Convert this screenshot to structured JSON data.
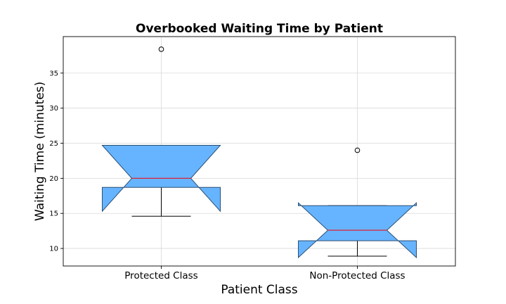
{
  "chart_data": {
    "type": "box",
    "title": "Overbooked Waiting Time by Patient",
    "xlabel": "Patient Class",
    "ylabel": "Waiting Time (minutes)",
    "categories": [
      "Protected Class",
      "Non-Protected Class"
    ],
    "ylim": [
      7.5,
      40.2
    ],
    "yticks": [
      10,
      15,
      20,
      25,
      30,
      35
    ],
    "grid": true,
    "notched": true,
    "box_color": "#63b3ff",
    "edge_color": "#2b4f73",
    "median_color": "#e0203a",
    "boxes": [
      {
        "name": "Protected Class",
        "whisker_low": 14.6,
        "q1": 18.7,
        "median": 20.0,
        "q3": 24.7,
        "whisker_high": 24.7,
        "notch_low": 15.3,
        "notch_high": 24.7,
        "outliers": [
          38.4
        ]
      },
      {
        "name": "Non-Protected Class",
        "whisker_low": 8.9,
        "q1": 11.1,
        "median": 12.6,
        "q3": 16.1,
        "whisker_high": 16.1,
        "notch_low": 8.7,
        "notch_high": 16.5,
        "outliers": [
          24.0
        ]
      }
    ]
  }
}
